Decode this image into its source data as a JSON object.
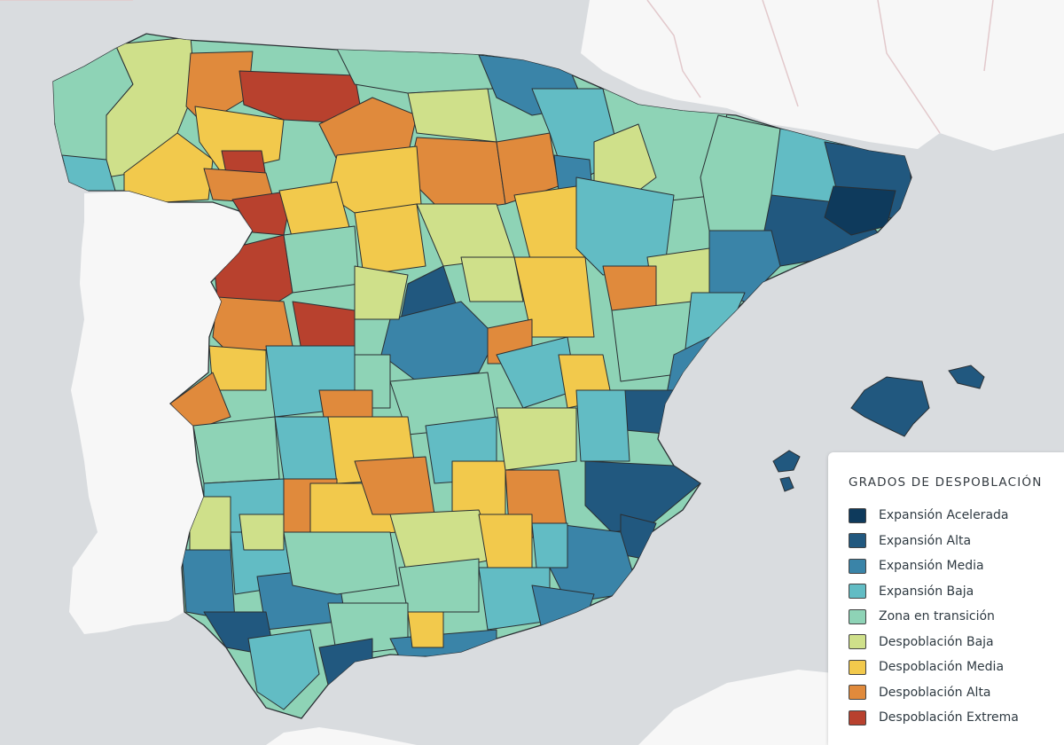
{
  "colors": {
    "sea": "#d9dcdf",
    "foreign_land": "#f7f7f7",
    "border_line": "#e2c9cc",
    "region_stroke": "#2a2f33"
  },
  "legend": {
    "title": "GRADOS DE DESPOBLACIÓN",
    "items": [
      {
        "label": "Expansión Acelerada",
        "color": "#0e3a5c"
      },
      {
        "label": "Expansión Alta",
        "color": "#21587f"
      },
      {
        "label": "Expansión Media",
        "color": "#3a84a8"
      },
      {
        "label": "Expansión Baja",
        "color": "#62bcc4"
      },
      {
        "label": "Zona en transición",
        "color": "#8ed3b6"
      },
      {
        "label": "Despoblación Baja",
        "color": "#cfe08a"
      },
      {
        "label": "Despoblación Media",
        "color": "#f2c94c"
      },
      {
        "label": "Despoblación Alta",
        "color": "#e08a3c"
      },
      {
        "label": "Despoblación Extrema",
        "color": "#b8412e"
      }
    ]
  }
}
